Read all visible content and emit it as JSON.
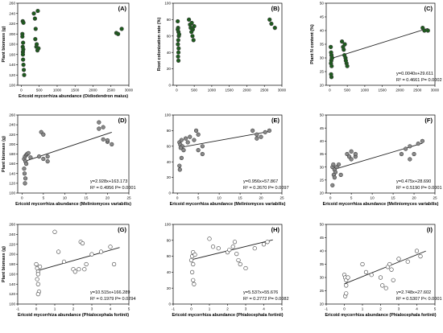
{
  "chart_data": [
    {
      "type": "scatter",
      "panel_label": "(A)",
      "xlabel": "Ericoid mycorrhiza abundance (Oidiodendron maius)",
      "ylabel": "Plant biomass (g)",
      "xlim": [
        -100,
        3000
      ],
      "ylim": [
        100,
        260
      ],
      "xticks": [
        0,
        500,
        1000,
        1500,
        2000,
        2500,
        3000
      ],
      "yticks": [
        100,
        120,
        140,
        160,
        180,
        200,
        220,
        240,
        260
      ],
      "marker": "green",
      "grid": false,
      "points": [
        [
          30,
          200
        ],
        [
          40,
          175
        ],
        [
          45,
          165
        ],
        [
          50,
          150
        ],
        [
          60,
          140
        ],
        [
          70,
          130
        ],
        [
          80,
          120
        ],
        [
          40,
          225
        ],
        [
          30,
          195
        ],
        [
          50,
          183
        ],
        [
          55,
          170
        ],
        [
          45,
          160
        ],
        [
          60,
          222
        ],
        [
          350,
          240
        ],
        [
          380,
          230
        ],
        [
          400,
          210
        ],
        [
          390,
          190
        ],
        [
          420,
          175
        ],
        [
          450,
          168
        ],
        [
          480,
          172
        ],
        [
          460,
          245
        ],
        [
          430,
          180
        ],
        [
          2650,
          202
        ],
        [
          2700,
          200
        ],
        [
          2800,
          210
        ]
      ]
    },
    {
      "type": "scatter",
      "panel_label": "(B)",
      "xlabel": "",
      "ylabel": "Root colonization rate (%)",
      "xlim": [
        -100,
        3000
      ],
      "ylim": [
        0,
        100
      ],
      "xticks": [
        0,
        500,
        1000,
        1500,
        2000,
        2500,
        3000
      ],
      "yticks": [
        0,
        20,
        40,
        60,
        80,
        100
      ],
      "marker": "green",
      "grid": false,
      "points": [
        [
          30,
          78
        ],
        [
          40,
          70
        ],
        [
          50,
          65
        ],
        [
          60,
          60
        ],
        [
          45,
          55
        ],
        [
          35,
          50
        ],
        [
          55,
          45
        ],
        [
          50,
          40
        ],
        [
          40,
          35
        ],
        [
          50,
          30
        ],
        [
          70,
          62
        ],
        [
          30,
          68
        ],
        [
          350,
          80
        ],
        [
          380,
          74
        ],
        [
          400,
          70
        ],
        [
          420,
          65
        ],
        [
          450,
          60
        ],
        [
          480,
          55
        ],
        [
          460,
          68
        ],
        [
          500,
          72
        ],
        [
          430,
          76
        ],
        [
          2650,
          80
        ],
        [
          2700,
          75
        ],
        [
          2800,
          70
        ]
      ]
    },
    {
      "type": "scatter",
      "panel_label": "(C)",
      "xlabel": "",
      "ylabel": "Plant N content (%)",
      "xlim": [
        -100,
        3000
      ],
      "ylim": [
        20,
        50
      ],
      "xticks": [
        0,
        500,
        1000,
        1500,
        2000,
        2500,
        3000
      ],
      "yticks": [
        20,
        25,
        30,
        35,
        40,
        45,
        50
      ],
      "marker": "green",
      "grid": false,
      "points": [
        [
          30,
          34
        ],
        [
          40,
          32
        ],
        [
          50,
          31
        ],
        [
          60,
          30
        ],
        [
          45,
          29
        ],
        [
          35,
          28
        ],
        [
          55,
          27
        ],
        [
          50,
          23
        ],
        [
          40,
          24
        ],
        [
          50,
          31
        ],
        [
          70,
          30
        ],
        [
          350,
          36
        ],
        [
          380,
          34
        ],
        [
          400,
          33
        ],
        [
          420,
          31
        ],
        [
          450,
          30
        ],
        [
          480,
          28
        ],
        [
          460,
          29
        ],
        [
          500,
          27
        ],
        [
          430,
          35
        ],
        [
          2650,
          41
        ],
        [
          2700,
          40
        ],
        [
          2800,
          40
        ]
      ],
      "fit": {
        "slope": 0.004,
        "intercept": 29.611,
        "from": 0,
        "to": 2800
      },
      "equation": "y=0.0040x+29.611",
      "r2_text": "R² = 0.4661 P= 0.0002"
    },
    {
      "type": "scatter",
      "panel_label": "(D)",
      "xlabel": "Ericoid mycorrhiza abundance (Meliniomyces variabilis)",
      "ylabel": "Plant biomass (g)",
      "xlim": [
        -1,
        25
      ],
      "ylim": [
        100,
        260
      ],
      "xticks": [
        0,
        5,
        10,
        15,
        20,
        25
      ],
      "yticks": [
        100,
        120,
        140,
        160,
        180,
        200,
        220,
        240,
        260
      ],
      "marker": "grey",
      "grid": false,
      "points": [
        [
          0.5,
          170
        ],
        [
          0.7,
          175
        ],
        [
          1,
          178
        ],
        [
          1.2,
          180
        ],
        [
          1.5,
          182
        ],
        [
          0.8,
          165
        ],
        [
          1,
          160
        ],
        [
          0.5,
          150
        ],
        [
          0.6,
          140
        ],
        [
          0.8,
          130
        ],
        [
          0.7,
          120
        ],
        [
          2,
          173
        ],
        [
          4,
          175
        ],
        [
          4.5,
          225
        ],
        [
          5,
          220
        ],
        [
          5,
          170
        ],
        [
          6,
          165
        ],
        [
          6,
          175
        ],
        [
          18,
          232
        ],
        [
          19,
          235
        ],
        [
          19,
          210
        ],
        [
          20,
          205
        ],
        [
          21,
          200
        ],
        [
          18,
          245
        ],
        [
          20,
          208
        ]
      ],
      "fit": {
        "slope": 2.928,
        "intercept": 163.173,
        "from": 0.5,
        "to": 21
      },
      "equation": "y=2.928x+163.173",
      "r2_text": "R² = 0.4956 P= 0.0001"
    },
    {
      "type": "scatter",
      "panel_label": "(E)",
      "xlabel": "Ericoid mycorrhiza abundance (Meliniomyces variabilis)",
      "ylabel": "",
      "xlim": [
        -1,
        25
      ],
      "ylim": [
        0,
        100
      ],
      "xticks": [
        0,
        5,
        10,
        15,
        20,
        25
      ],
      "yticks": [
        0,
        20,
        40,
        60,
        80,
        100
      ],
      "marker": "grey",
      "grid": false,
      "points": [
        [
          0.5,
          65
        ],
        [
          0.7,
          62
        ],
        [
          1,
          68
        ],
        [
          1.2,
          60
        ],
        [
          1.5,
          55
        ],
        [
          0.8,
          58
        ],
        [
          1,
          45
        ],
        [
          0.5,
          35
        ],
        [
          0.6,
          30
        ],
        [
          2,
          70
        ],
        [
          2.5,
          65
        ],
        [
          3,
          72
        ],
        [
          4,
          68
        ],
        [
          4.5,
          80
        ],
        [
          5,
          75
        ],
        [
          5,
          55
        ],
        [
          6,
          60
        ],
        [
          6,
          50
        ],
        [
          18,
          80
        ],
        [
          19,
          75
        ],
        [
          19,
          70
        ],
        [
          20,
          72
        ],
        [
          21,
          78
        ],
        [
          22,
          80
        ]
      ],
      "fit": {
        "slope": 0.956,
        "intercept": 57.867,
        "from": 0.5,
        "to": 22
      },
      "equation": "y=0.956x+57.867",
      "r2_text": "R² = 0.2670 P= 0.0097"
    },
    {
      "type": "scatter",
      "panel_label": "(F)",
      "xlabel": "Ericoid mycorrhiza abundance (Meliniomyces variabilis)",
      "ylabel": "",
      "xlim": [
        -1,
        25
      ],
      "ylim": [
        20,
        50
      ],
      "xticks": [
        0,
        5,
        10,
        15,
        20,
        25
      ],
      "yticks": [
        20,
        25,
        30,
        35,
        40,
        45,
        50
      ],
      "marker": "grey",
      "grid": false,
      "points": [
        [
          0.5,
          30
        ],
        [
          0.7,
          31
        ],
        [
          1,
          29
        ],
        [
          1.2,
          28
        ],
        [
          1.5,
          30
        ],
        [
          0.8,
          27
        ],
        [
          1,
          26
        ],
        [
          0.5,
          23
        ],
        [
          2,
          31
        ],
        [
          2.5,
          27
        ],
        [
          4,
          35
        ],
        [
          4.5,
          34
        ],
        [
          5,
          36
        ],
        [
          5,
          33
        ],
        [
          6,
          34
        ],
        [
          6,
          35
        ],
        [
          18,
          37
        ],
        [
          19,
          38
        ],
        [
          19,
          33
        ],
        [
          20,
          35
        ],
        [
          21,
          39
        ],
        [
          22,
          40
        ],
        [
          17,
          35
        ]
      ],
      "fit": {
        "slope": 0.475,
        "intercept": 28.69,
        "from": 0.5,
        "to": 22
      },
      "equation": "y=0.475x+28.690",
      "r2_text": "R² = 0.5190 P= 0.0001"
    },
    {
      "type": "scatter",
      "panel_label": "(G)",
      "xlabel": "Ericoid mycorrhiza abundance (Phialocephala fortinii)",
      "ylabel": "Plant biomass (g)",
      "xlim": [
        -1,
        5
      ],
      "ylim": [
        100,
        260
      ],
      "xticks": [
        -1,
        0,
        1,
        2,
        3,
        4,
        5
      ],
      "yticks": [
        100,
        120,
        140,
        160,
        180,
        200,
        220,
        240,
        260
      ],
      "marker": "white",
      "grid": false,
      "points": [
        [
          0,
          180
        ],
        [
          0.05,
          172
        ],
        [
          0.1,
          165
        ],
        [
          0.1,
          160
        ],
        [
          0.05,
          150
        ],
        [
          0.1,
          140
        ],
        [
          0.15,
          125
        ],
        [
          0.1,
          120
        ],
        [
          0.2,
          175
        ],
        [
          1,
          245
        ],
        [
          1.2,
          205
        ],
        [
          1.5,
          185
        ],
        [
          2,
          170
        ],
        [
          2.1,
          165
        ],
        [
          2.3,
          170
        ],
        [
          2.4,
          225
        ],
        [
          2.5,
          222
        ],
        [
          2.6,
          170
        ],
        [
          2.7,
          180
        ],
        [
          3,
          200
        ],
        [
          3.5,
          205
        ],
        [
          4,
          215
        ],
        [
          4.2,
          180
        ]
      ],
      "fit": {
        "slope": 10.515,
        "intercept": 166.289,
        "from": 0,
        "to": 4.5
      },
      "equation": "y=10.515x+166.289",
      "r2_text": "R² = 0.1979 P= 0.0294"
    },
    {
      "type": "scatter",
      "panel_label": "(H)",
      "xlabel": "Ericoid mycorrhiza abundance (Phialocephala fortinii)",
      "ylabel": "",
      "xlim": [
        -1,
        5
      ],
      "ylim": [
        0,
        100
      ],
      "xticks": [
        -1,
        0,
        1,
        2,
        3,
        4,
        5
      ],
      "yticks": [
        0,
        20,
        40,
        60,
        80,
        100
      ],
      "marker": "white",
      "grid": false,
      "points": [
        [
          0,
          55
        ],
        [
          0.05,
          60
        ],
        [
          0.1,
          65
        ],
        [
          0.1,
          50
        ],
        [
          0.05,
          40
        ],
        [
          0.1,
          30
        ],
        [
          0.15,
          25
        ],
        [
          0.2,
          62
        ],
        [
          1,
          82
        ],
        [
          1.2,
          72
        ],
        [
          1.5,
          70
        ],
        [
          2,
          65
        ],
        [
          2.1,
          68
        ],
        [
          2.3,
          72
        ],
        [
          2.4,
          78
        ],
        [
          2.5,
          63
        ],
        [
          2.6,
          55
        ],
        [
          2.7,
          50
        ],
        [
          3,
          45
        ],
        [
          3.5,
          70
        ],
        [
          4,
          75
        ],
        [
          4.2,
          78
        ]
      ],
      "fit": {
        "slope": 5.537,
        "intercept": 55.676,
        "from": 0,
        "to": 4.5
      },
      "equation": "y=5.537x+55.676",
      "r2_text": "R² = 0.2772 P= 0.0082"
    },
    {
      "type": "scatter",
      "panel_label": "(I)",
      "xlabel": "Ericoid mycorrhiza abundance (Phialocephala fortinii)",
      "ylabel": "",
      "xlim": [
        -1,
        5
      ],
      "ylim": [
        20,
        50
      ],
      "xticks": [
        -1,
        0,
        1,
        2,
        3,
        4,
        5
      ],
      "yticks": [
        20,
        25,
        30,
        35,
        40,
        45,
        50
      ],
      "marker": "white",
      "grid": false,
      "points": [
        [
          0,
          31
        ],
        [
          0.05,
          30
        ],
        [
          0.1,
          29
        ],
        [
          0.1,
          27
        ],
        [
          0.05,
          23
        ],
        [
          0.1,
          24
        ],
        [
          0.2,
          30
        ],
        [
          1,
          35
        ],
        [
          1.2,
          32
        ],
        [
          1.5,
          31
        ],
        [
          2,
          30
        ],
        [
          2.1,
          27
        ],
        [
          2.3,
          26
        ],
        [
          2.4,
          34
        ],
        [
          2.5,
          35
        ],
        [
          2.6,
          33
        ],
        [
          2.7,
          29
        ],
        [
          3,
          37
        ],
        [
          3.5,
          36
        ],
        [
          4,
          40
        ],
        [
          4.2,
          38
        ]
      ],
      "fit": {
        "slope": 2.748,
        "intercept": 27.602,
        "from": 0,
        "to": 4.5
      },
      "equation": "y=2.748x+27.602",
      "r2_text": "R² = 0.5307 P< 0.0001"
    }
  ],
  "colors": {
    "green": "#1d5c1d",
    "grey": "#8a8a8a",
    "white": "#ffffff",
    "stroke": "#3a3a3a",
    "axis": "#000000"
  }
}
